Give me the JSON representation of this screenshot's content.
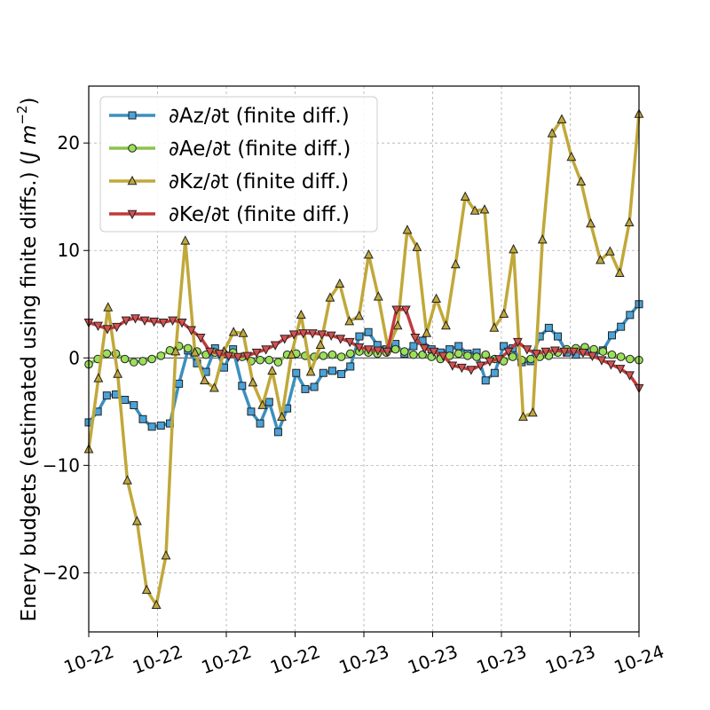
{
  "chart_data": {
    "type": "line",
    "ylabel": "Enery budgets (estimated using finite diffs.) (J m^-2)",
    "ylabel_main": "Enery budgets (estimated using finite diffs.) (",
    "ylabel_unit": "J m",
    "ylabel_exp": "−2",
    "ylabel_close": ")",
    "ylim": [
      -25.5,
      25.3
    ],
    "yticks": [
      -20,
      -10,
      0,
      10,
      20
    ],
    "ytick_labels": [
      "−20",
      "−10",
      "0",
      "10",
      "20"
    ],
    "xtick_labels": [
      "10-22",
      "10-22",
      "10-22",
      "10-22",
      "10-23",
      "10-23",
      "10-23",
      "10-23",
      "10-24"
    ],
    "grid": true,
    "legend_position": "top-left",
    "series": [
      {
        "name": "∂Az/∂t (finite diff.)",
        "color": "#3b8fbf",
        "marker_fill": "#4aa3d9",
        "marker": "square",
        "values": [
          -6.0,
          -5.0,
          -3.5,
          -3.4,
          -3.9,
          -4.4,
          -5.7,
          -6.4,
          -6.3,
          -6.1,
          -2.4,
          0.7,
          -0.5,
          -1.3,
          0.9,
          -0.9,
          0.8,
          -2.6,
          -5.0,
          -6.1,
          -4.1,
          -6.9,
          -4.7,
          -1.4,
          -2.9,
          -2.7,
          -1.4,
          -1.2,
          -1.5,
          -0.8,
          2.0,
          2.4,
          1.2,
          0.8,
          1.3,
          0.4,
          1.1,
          1.6,
          0.8,
          0.5,
          0.8,
          1.1,
          0.4,
          0.5,
          -2.1,
          -1.4,
          1.1,
          0.9,
          -0.4,
          -0.3,
          2.0,
          2.8,
          2.0,
          0.5,
          0.3,
          0.6,
          0.3,
          0.7,
          2.1,
          2.9,
          4.0,
          5.0
        ]
      },
      {
        "name": "∂Ae/∂t (finite diff.)",
        "color": "#8bc34a",
        "marker_fill": "#9be05a",
        "marker": "circle",
        "values": [
          -0.6,
          -0.1,
          0.4,
          0.4,
          -0.1,
          -0.4,
          -0.3,
          -0.1,
          0.2,
          0.7,
          1.1,
          0.9,
          0.6,
          0.3,
          0.5,
          0.4,
          0.5,
          0.1,
          -0.3,
          -0.2,
          -0.2,
          -0.4,
          0.3,
          0.4,
          0.2,
          0.1,
          0.2,
          0.3,
          0.1,
          0.4,
          0.6,
          0.5,
          0.4,
          0.5,
          0.8,
          0.6,
          0.3,
          0.3,
          0.1,
          -0.1,
          0.2,
          0.4,
          0.2,
          0.1,
          0.3,
          -0.1,
          -0.3,
          0.1,
          -0.2,
          -0.1,
          0.1,
          0.2,
          0.5,
          0.8,
          0.9,
          1.0,
          0.8,
          0.6,
          0.3,
          0.1,
          -0.1,
          -0.2
        ]
      },
      {
        "name": "∂Kz/∂t (finite diff.)",
        "color": "#c0a83a",
        "marker_fill": "#c0a83a",
        "marker": "triangle-up",
        "values": [
          -8.5,
          -1.9,
          4.7,
          -1.5,
          -11.4,
          -15.2,
          -21.6,
          -23.0,
          -18.4,
          0.6,
          10.9,
          0.5,
          -2.1,
          -2.8,
          0.6,
          2.4,
          2.3,
          -2.3,
          -4.4,
          -1.2,
          -5.5,
          0.3,
          4.0,
          -1.3,
          1.2,
          5.6,
          6.9,
          3.4,
          3.9,
          9.6,
          5.7,
          0.9,
          3.0,
          11.9,
          10.3,
          2.3,
          5.5,
          3.0,
          8.7,
          15.0,
          13.7,
          13.8,
          2.8,
          4.1,
          10.1,
          -5.5,
          -5.1,
          11.0,
          20.9,
          22.2,
          18.7,
          16.4,
          12.5,
          9.1,
          9.9,
          7.9,
          12.6,
          22.7
        ]
      },
      {
        "name": "∂Ke/∂t (finite diff.)",
        "color": "#c03a3a",
        "marker_fill": "#d65050",
        "marker": "triangle-down",
        "values": [
          3.3,
          3.0,
          2.7,
          2.9,
          3.5,
          3.7,
          3.5,
          3.4,
          3.3,
          3.5,
          3.3,
          2.6,
          1.9,
          0.6,
          0.4,
          0.2,
          0.1,
          0.2,
          0.5,
          0.8,
          1.2,
          1.8,
          2.2,
          2.3,
          2.3,
          2.2,
          2.1,
          1.8,
          1.5,
          1.0,
          0.8,
          0.7,
          0.6,
          4.5,
          4.5,
          1.9,
          0.9,
          0.6,
          0.2,
          -0.7,
          -0.9,
          -1.1,
          -0.7,
          -0.3,
          -0.1,
          0.6,
          1.5,
          0.8,
          0.4,
          0.6,
          0.7,
          0.6,
          0.6,
          0.5,
          0.2,
          -0.2,
          -0.6,
          -1.0,
          -1.6,
          -2.8
        ]
      }
    ]
  }
}
